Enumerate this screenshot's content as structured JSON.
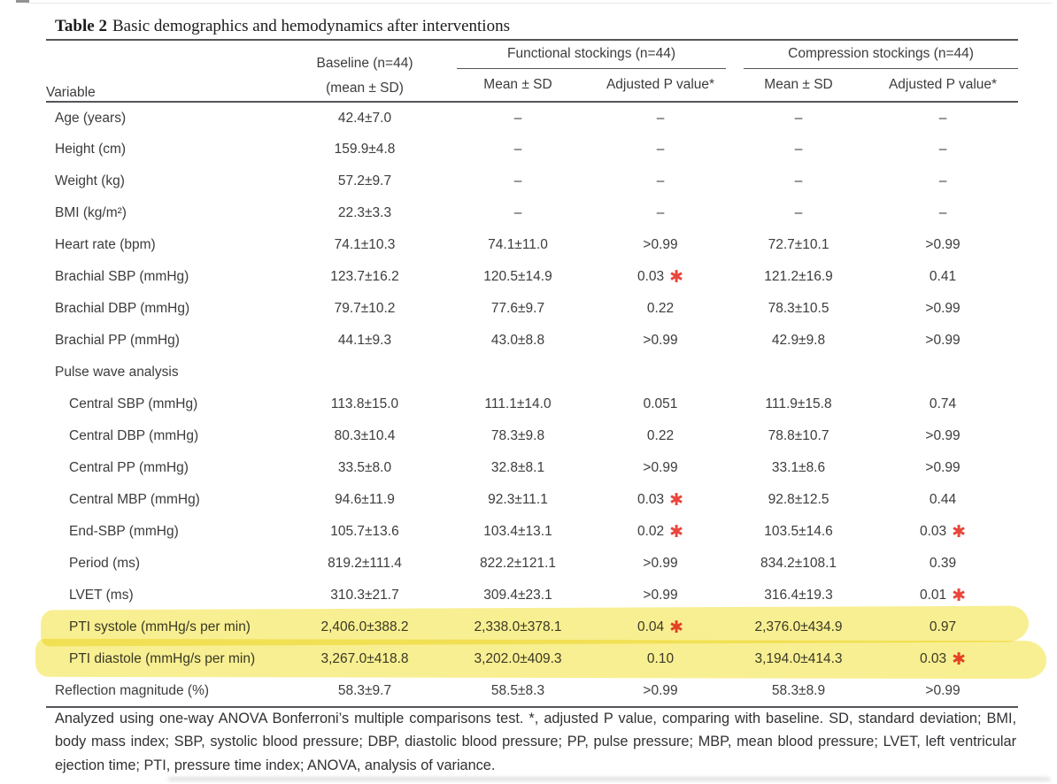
{
  "title": {
    "label": "Table 2",
    "text": "Basic demographics and hemodynamics after interventions"
  },
  "header": {
    "variable": "Variable",
    "baseline_line1": "Baseline (n=44)",
    "baseline_line2": "(mean ± SD)",
    "groups": [
      {
        "label": "Functional stockings (n=44)",
        "sub": [
          "Mean ± SD",
          "Adjusted P value*"
        ]
      },
      {
        "label": "Compression stockings (n=44)",
        "sub": [
          "Mean ± SD",
          "Adjusted P value*"
        ]
      }
    ]
  },
  "rows": [
    {
      "label": "Age (years)",
      "type": "data",
      "indent": false,
      "cells": [
        "42.4±7.0",
        "–",
        "–",
        "–",
        "–"
      ],
      "stars": []
    },
    {
      "label": "Height (cm)",
      "type": "data",
      "indent": false,
      "cells": [
        "159.9±4.8",
        "–",
        "–",
        "–",
        "–"
      ],
      "stars": []
    },
    {
      "label": "Weight (kg)",
      "type": "data",
      "indent": false,
      "cells": [
        "57.2±9.7",
        "–",
        "–",
        "–",
        "–"
      ],
      "stars": []
    },
    {
      "label": "BMI (kg/m²)",
      "type": "data",
      "indent": false,
      "cells": [
        "22.3±3.3",
        "–",
        "–",
        "–",
        "–"
      ],
      "stars": []
    },
    {
      "label": "Heart rate (bpm)",
      "type": "data",
      "indent": false,
      "cells": [
        "74.1±10.3",
        "74.1±11.0",
        ">0.99",
        "72.7±10.1",
        ">0.99"
      ],
      "stars": []
    },
    {
      "label": "Brachial SBP (mmHg)",
      "type": "data",
      "indent": false,
      "cells": [
        "123.7±16.2",
        "120.5±14.9",
        "0.03",
        "121.2±16.9",
        "0.41"
      ],
      "stars": [
        2
      ]
    },
    {
      "label": "Brachial DBP (mmHg)",
      "type": "data",
      "indent": false,
      "cells": [
        "79.7±10.2",
        "77.6±9.7",
        "0.22",
        "78.3±10.5",
        ">0.99"
      ],
      "stars": []
    },
    {
      "label": "Brachial PP (mmHg)",
      "type": "data",
      "indent": false,
      "cells": [
        "44.1±9.3",
        "43.0±8.8",
        ">0.99",
        "42.9±9.8",
        ">0.99"
      ],
      "stars": []
    },
    {
      "label": "Pulse wave analysis",
      "type": "section",
      "indent": false,
      "cells": [
        "",
        "",
        "",
        "",
        ""
      ],
      "stars": []
    },
    {
      "label": "Central SBP (mmHg)",
      "type": "data",
      "indent": true,
      "cells": [
        "113.8±15.0",
        "111.1±14.0",
        "0.051",
        "111.9±15.8",
        "0.74"
      ],
      "stars": []
    },
    {
      "label": "Central DBP (mmHg)",
      "type": "data",
      "indent": true,
      "cells": [
        "80.3±10.4",
        "78.3±9.8",
        "0.22",
        "78.8±10.7",
        ">0.99"
      ],
      "stars": []
    },
    {
      "label": "Central PP (mmHg)",
      "type": "data",
      "indent": true,
      "cells": [
        "33.5±8.0",
        "32.8±8.1",
        ">0.99",
        "33.1±8.6",
        ">0.99"
      ],
      "stars": []
    },
    {
      "label": "Central MBP (mmHg)",
      "type": "data",
      "indent": true,
      "cells": [
        "94.6±11.9",
        "92.3±11.1",
        "0.03",
        "92.8±12.5",
        "0.44"
      ],
      "stars": [
        2
      ]
    },
    {
      "label": "End-SBP (mmHg)",
      "type": "data",
      "indent": true,
      "cells": [
        "105.7±13.6",
        "103.4±13.1",
        "0.02",
        "103.5±14.6",
        "0.03"
      ],
      "stars": [
        2,
        4
      ]
    },
    {
      "label": "Period (ms)",
      "type": "data",
      "indent": true,
      "cells": [
        "819.2±111.4",
        "822.2±121.1",
        ">0.99",
        "834.2±108.1",
        "0.39"
      ],
      "stars": []
    },
    {
      "label": "LVET (ms)",
      "type": "data",
      "indent": true,
      "cells": [
        "310.3±21.7",
        "309.4±23.1",
        ">0.99",
        "316.4±19.3",
        "0.01"
      ],
      "stars": [
        4
      ]
    },
    {
      "label": "PTI systole (mmHg/s per min)",
      "type": "data",
      "indent": true,
      "cells": [
        "2,406.0±388.2",
        "2,338.0±378.1",
        "0.04",
        "2,376.0±434.9",
        "0.97"
      ],
      "stars": [
        2
      ],
      "highlight": true
    },
    {
      "label": "PTI diastole (mmHg/s per min)",
      "type": "data",
      "indent": true,
      "cells": [
        "3,267.0±418.8",
        "3,202.0±409.3",
        "0.10",
        "3,194.0±414.3",
        "0.03"
      ],
      "stars": [
        4
      ],
      "highlight": true
    },
    {
      "label": "Reflection magnitude (%)",
      "type": "data",
      "indent": false,
      "cells": [
        "58.3±9.7",
        "58.5±8.3",
        ">0.99",
        "58.3±8.9",
        ">0.99"
      ],
      "stars": []
    }
  ],
  "footnote": "Analyzed using one-way ANOVA Bonferroni’s multiple comparisons test. *, adjusted P value, comparing with baseline. SD, standard deviation; BMI, body mass index; SBP, systolic blood pressure; DBP, diastolic blood pressure; PP, pulse pressure; MBP, mean blood pressure; LVET, left ventricular ejection time; PTI, pressure time index; ANOVA, analysis of variance.",
  "icons": {
    "significance_star": "✱"
  },
  "colors": {
    "text": "#3b3c3e",
    "rule": "#55565a",
    "significance_star": "#e8463c",
    "highlighter": "#f6eb7a"
  }
}
